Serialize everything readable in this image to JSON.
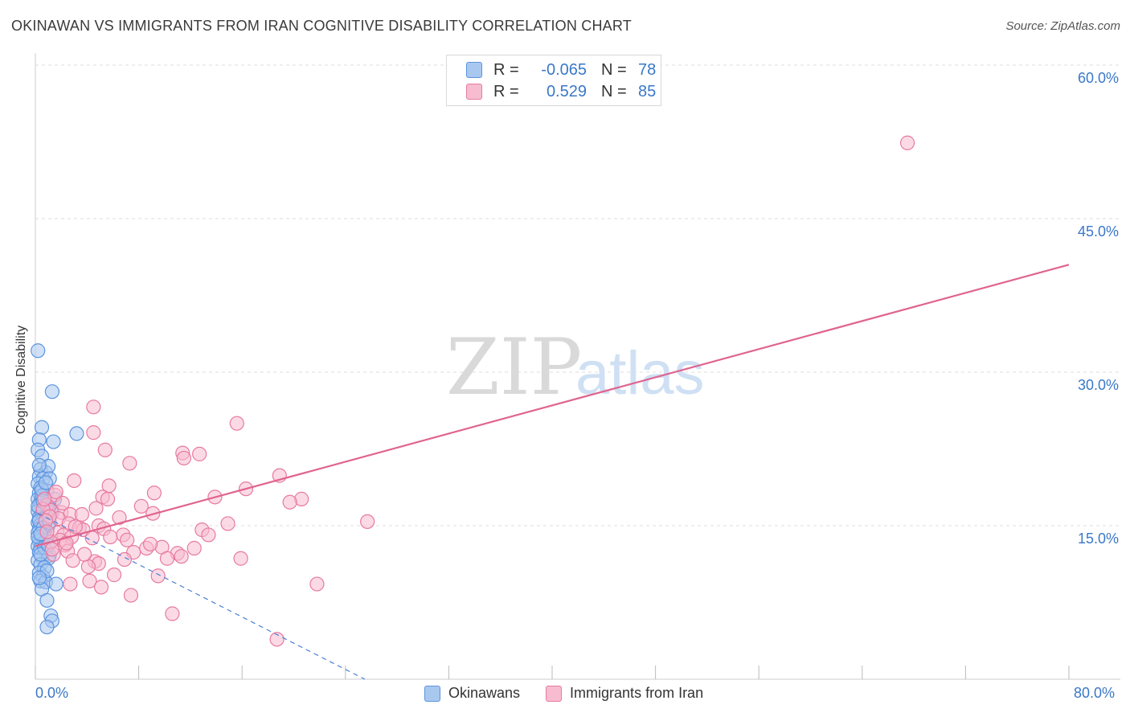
{
  "header": {
    "title": "OKINAWAN VS IMMIGRANTS FROM IRAN COGNITIVE DISABILITY CORRELATION CHART",
    "source": "Source: ZipAtlas.com"
  },
  "colors": {
    "okinawan_fill": "#a9c8f0",
    "okinawan_stroke": "#5b93de",
    "iran_fill": "#f7bcd0",
    "iran_stroke": "#e77aa0",
    "okinawan_line": "#4a7fd4",
    "iran_line": "#e0648f",
    "grid": "#dddddd",
    "tick_text": "#3a78c8"
  },
  "legend": {
    "row1": {
      "r_label": "R =",
      "r_value": "-0.065",
      "n_label": "N =",
      "n_value": "78"
    },
    "row2": {
      "r_label": "R =",
      "r_value": "0.529",
      "n_label": "N =",
      "n_value": "85"
    }
  },
  "bottom_legend": {
    "okinawans": "Okinawans",
    "iran": "Immigrants from Iran"
  },
  "axes": {
    "y_label": "Cognitive Disability",
    "x_min_label": "0.0%",
    "x_max_label": "80.0%",
    "y_ticks": [
      "15.0%",
      "30.0%",
      "45.0%",
      "60.0%"
    ]
  },
  "watermark": {
    "zip": "ZIP",
    "atlas": "atlas"
  },
  "chart_data": {
    "type": "scatter",
    "xlabel": "",
    "ylabel": "Cognitive Disability",
    "xlim": [
      0,
      80
    ],
    "ylim": [
      0,
      60
    ],
    "x_tick_labels": [
      "0.0%",
      "80.0%"
    ],
    "y_tick_values": [
      15,
      30,
      45,
      60
    ],
    "grid": true,
    "legend_position": "top-center",
    "series": [
      {
        "name": "Okinawans",
        "r": -0.065,
        "n": 78,
        "trend": {
          "x": [
            0.2,
            25.5
          ],
          "y": [
            16.2,
            0.0
          ],
          "style": "dashed"
        },
        "points": [
          [
            0.2,
            32.1
          ],
          [
            1.3,
            28.1
          ],
          [
            0.5,
            24.6
          ],
          [
            1.4,
            23.2
          ],
          [
            3.2,
            24.0
          ],
          [
            0.3,
            23.4
          ],
          [
            0.2,
            22.4
          ],
          [
            0.5,
            21.8
          ],
          [
            0.4,
            20.5
          ],
          [
            0.8,
            20.2
          ],
          [
            1.0,
            20.8
          ],
          [
            0.3,
            19.8
          ],
          [
            0.6,
            19.6
          ],
          [
            1.1,
            19.6
          ],
          [
            0.2,
            19.1
          ],
          [
            0.4,
            18.7
          ],
          [
            0.9,
            18.4
          ],
          [
            0.3,
            18.2
          ],
          [
            0.6,
            18.0
          ],
          [
            0.2,
            17.6
          ],
          [
            1.5,
            17.6
          ],
          [
            0.4,
            17.3
          ],
          [
            0.7,
            17.1
          ],
          [
            0.3,
            16.8
          ],
          [
            0.9,
            16.7
          ],
          [
            1.2,
            16.6
          ],
          [
            0.2,
            16.4
          ],
          [
            0.5,
            16.2
          ],
          [
            0.8,
            16.0
          ],
          [
            0.3,
            15.8
          ],
          [
            0.6,
            15.6
          ],
          [
            0.2,
            15.3
          ],
          [
            0.4,
            15.1
          ],
          [
            1.0,
            15.0
          ],
          [
            0.3,
            14.7
          ],
          [
            0.7,
            14.5
          ],
          [
            0.2,
            14.3
          ],
          [
            0.5,
            14.0
          ],
          [
            0.9,
            13.8
          ],
          [
            0.3,
            13.5
          ],
          [
            0.6,
            13.3
          ],
          [
            0.2,
            13.0
          ],
          [
            0.4,
            12.8
          ],
          [
            0.8,
            12.6
          ],
          [
            0.3,
            12.4
          ],
          [
            1.1,
            12.1
          ],
          [
            0.5,
            11.9
          ],
          [
            0.2,
            11.6
          ],
          [
            1.0,
            11.8
          ],
          [
            0.4,
            11.2
          ],
          [
            0.7,
            10.9
          ],
          [
            0.3,
            10.4
          ],
          [
            0.6,
            10.0
          ],
          [
            0.4,
            9.6
          ],
          [
            0.8,
            9.5
          ],
          [
            1.6,
            9.3
          ],
          [
            0.5,
            8.8
          ],
          [
            0.9,
            7.7
          ],
          [
            1.2,
            6.2
          ],
          [
            1.3,
            5.7
          ],
          [
            0.9,
            5.1
          ],
          [
            0.5,
            17.9
          ],
          [
            1.3,
            16.3
          ],
          [
            0.3,
            15.5
          ],
          [
            0.6,
            14.8
          ],
          [
            0.2,
            13.9
          ],
          [
            0.7,
            12.9
          ],
          [
            0.4,
            12.2
          ],
          [
            0.9,
            10.6
          ],
          [
            0.3,
            9.9
          ],
          [
            1.1,
            15.3
          ],
          [
            0.2,
            16.9
          ],
          [
            0.5,
            18.5
          ],
          [
            0.8,
            19.2
          ],
          [
            0.3,
            20.9
          ],
          [
            0.6,
            17.4
          ],
          [
            0.4,
            14.2
          ],
          [
            1.0,
            13.1
          ]
        ]
      },
      {
        "name": "Immigrants from Iran",
        "r": 0.529,
        "n": 85,
        "trend": {
          "x": [
            0.0,
            80.0
          ],
          "y": [
            13.0,
            40.5
          ],
          "style": "solid"
        },
        "points": [
          [
            67.5,
            52.4
          ],
          [
            15.6,
            25.0
          ],
          [
            4.5,
            26.6
          ],
          [
            4.5,
            24.1
          ],
          [
            5.4,
            22.4
          ],
          [
            11.4,
            22.1
          ],
          [
            12.7,
            22.0
          ],
          [
            11.5,
            21.6
          ],
          [
            7.3,
            21.1
          ],
          [
            18.9,
            19.9
          ],
          [
            3.0,
            19.4
          ],
          [
            5.7,
            18.9
          ],
          [
            9.2,
            18.2
          ],
          [
            16.3,
            18.6
          ],
          [
            1.5,
            18.0
          ],
          [
            5.2,
            17.8
          ],
          [
            5.6,
            17.6
          ],
          [
            13.9,
            17.8
          ],
          [
            20.6,
            17.6
          ],
          [
            19.7,
            17.3
          ],
          [
            0.9,
            17.0
          ],
          [
            8.2,
            16.9
          ],
          [
            1.2,
            16.5
          ],
          [
            2.0,
            16.3
          ],
          [
            2.7,
            16.1
          ],
          [
            3.6,
            16.1
          ],
          [
            1.8,
            15.7
          ],
          [
            2.6,
            15.2
          ],
          [
            4.9,
            15.0
          ],
          [
            14.9,
            15.2
          ],
          [
            25.7,
            15.4
          ],
          [
            3.4,
            14.8
          ],
          [
            3.7,
            14.6
          ],
          [
            12.9,
            14.6
          ],
          [
            1.7,
            14.3
          ],
          [
            2.2,
            14.1
          ],
          [
            6.8,
            14.1
          ],
          [
            2.8,
            13.9
          ],
          [
            1.9,
            13.6
          ],
          [
            4.4,
            13.8
          ],
          [
            1.2,
            13.4
          ],
          [
            2.3,
            13.1
          ],
          [
            8.6,
            12.8
          ],
          [
            9.8,
            12.9
          ],
          [
            12.3,
            12.8
          ],
          [
            2.5,
            12.5
          ],
          [
            7.6,
            12.4
          ],
          [
            11.0,
            12.3
          ],
          [
            11.3,
            12.0
          ],
          [
            10.2,
            11.8
          ],
          [
            15.9,
            11.8
          ],
          [
            1.4,
            12.2
          ],
          [
            2.9,
            11.6
          ],
          [
            4.6,
            11.5
          ],
          [
            4.9,
            11.3
          ],
          [
            6.9,
            11.7
          ],
          [
            4.1,
            11.0
          ],
          [
            6.1,
            10.2
          ],
          [
            9.5,
            10.1
          ],
          [
            4.2,
            9.6
          ],
          [
            2.7,
            9.3
          ],
          [
            21.8,
            9.3
          ],
          [
            5.1,
            9.0
          ],
          [
            7.4,
            8.2
          ],
          [
            10.6,
            6.4
          ],
          [
            18.7,
            3.9
          ],
          [
            0.6,
            16.6
          ],
          [
            1.1,
            15.9
          ],
          [
            3.1,
            14.9
          ],
          [
            0.8,
            15.5
          ],
          [
            2.4,
            13.3
          ],
          [
            5.3,
            14.7
          ],
          [
            6.5,
            15.8
          ],
          [
            7.1,
            13.6
          ],
          [
            8.9,
            13.2
          ],
          [
            1.6,
            18.3
          ],
          [
            0.9,
            14.4
          ],
          [
            3.8,
            12.2
          ],
          [
            2.1,
            17.2
          ],
          [
            4.7,
            16.7
          ],
          [
            0.7,
            17.6
          ],
          [
            5.8,
            13.9
          ],
          [
            9.1,
            16.2
          ],
          [
            13.4,
            14.1
          ],
          [
            1.3,
            12.7
          ]
        ]
      }
    ]
  }
}
